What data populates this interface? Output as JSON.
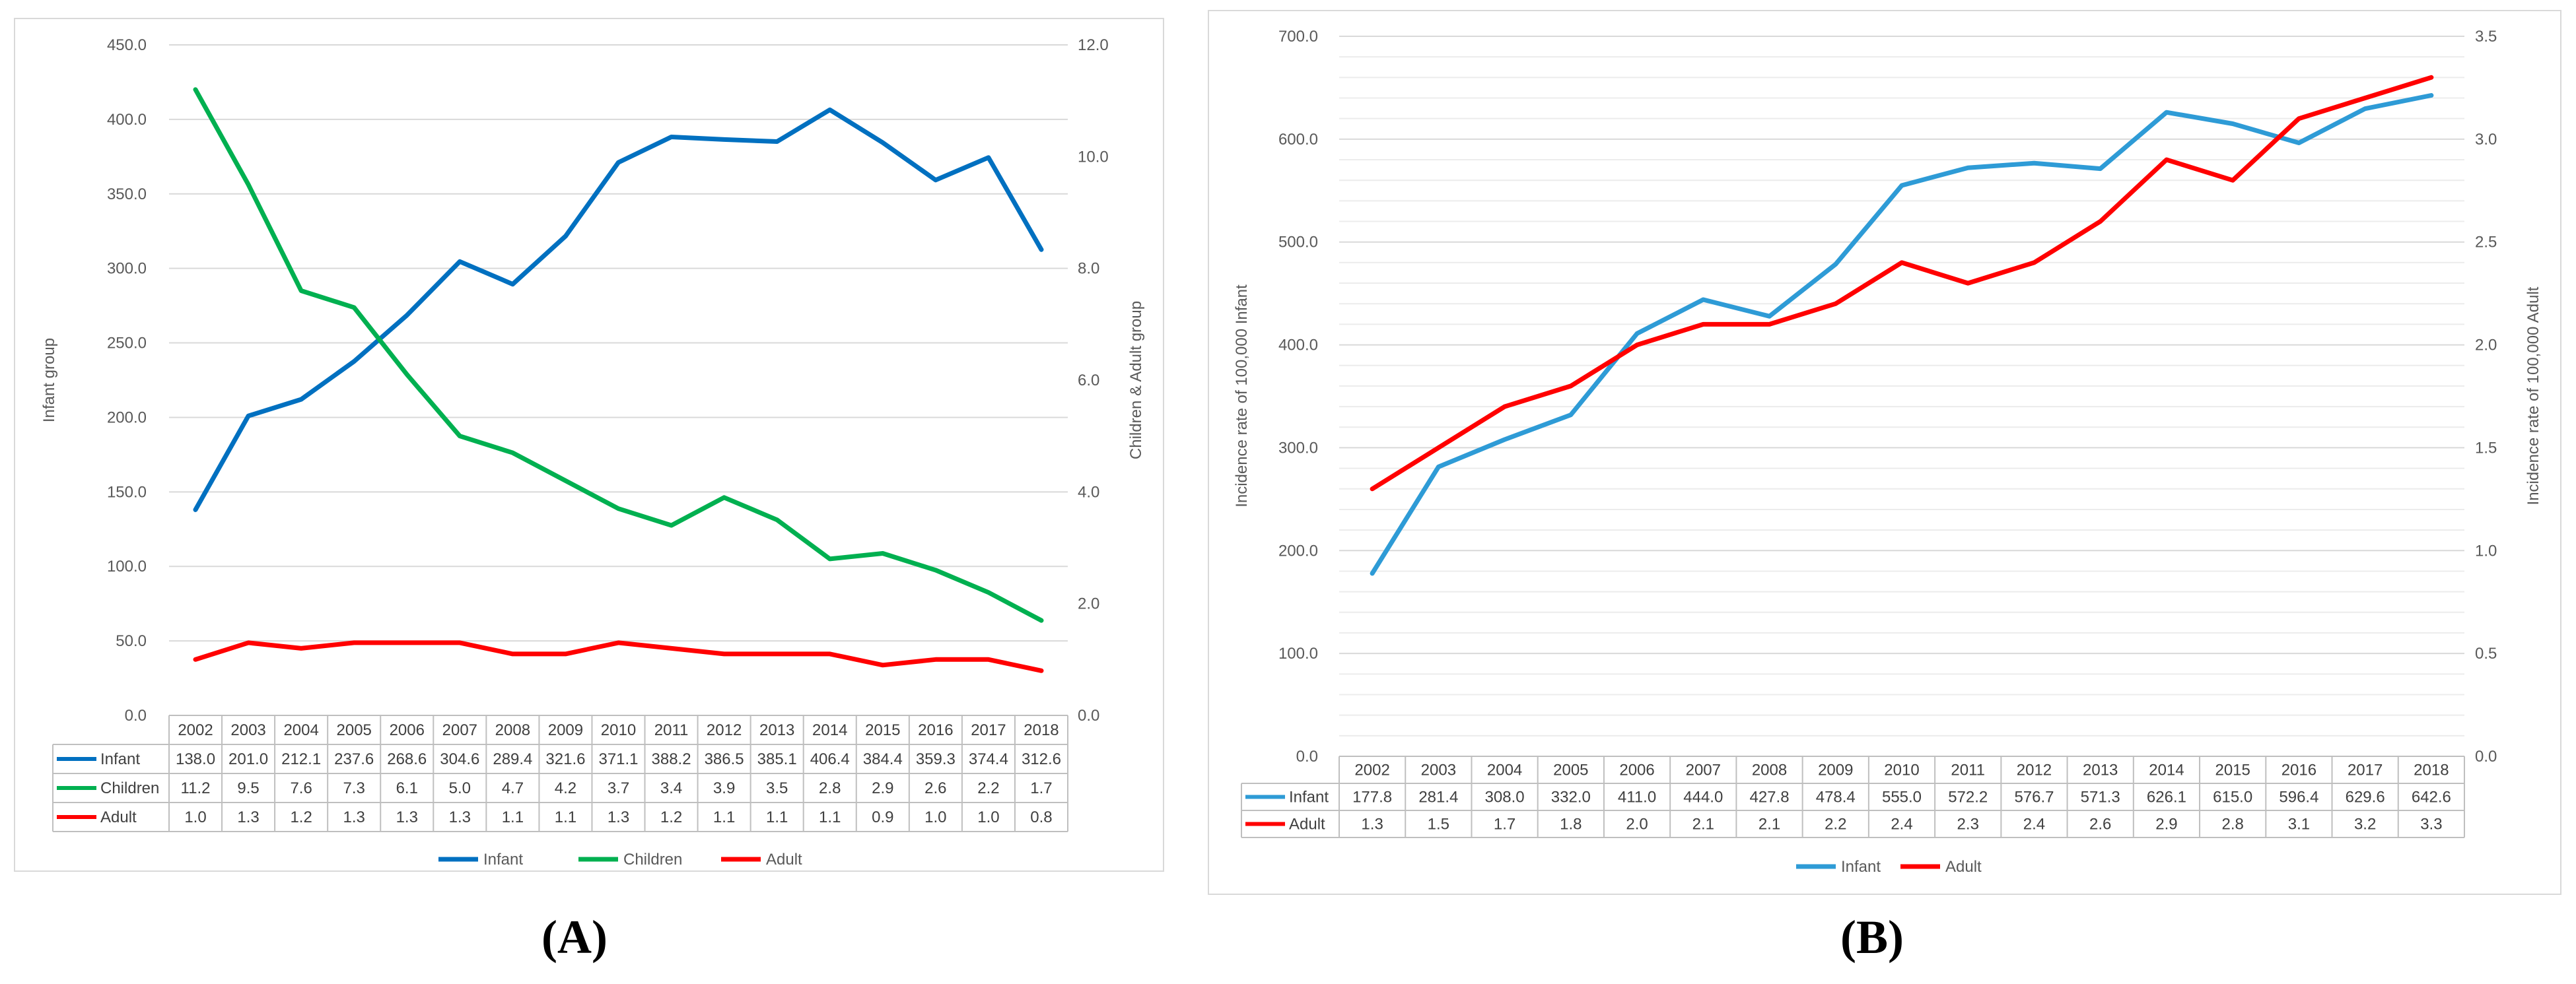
{
  "colors": {
    "infant_a": "#0070C0",
    "children": "#00B050",
    "adult": "#FF0000",
    "infant_b": "#2E9BD6"
  },
  "chart_data": [
    {
      "panel": "(A)",
      "type": "line",
      "categories": [
        "2002",
        "2003",
        "2004",
        "2005",
        "2006",
        "2007",
        "2008",
        "2009",
        "2010",
        "2011",
        "2012",
        "2013",
        "2014",
        "2015",
        "2016",
        "2017",
        "2018"
      ],
      "series": [
        {
          "name": "Infant",
          "axis": "left",
          "values": [
            138.0,
            201.0,
            212.1,
            237.6,
            268.6,
            304.6,
            289.4,
            321.6,
            371.1,
            388.2,
            386.5,
            385.1,
            406.4,
            384.4,
            359.3,
            374.4,
            312.6
          ]
        },
        {
          "name": "Children",
          "axis": "right",
          "values": [
            11.2,
            9.5,
            7.6,
            7.3,
            6.1,
            5.0,
            4.7,
            4.2,
            3.7,
            3.4,
            3.9,
            3.5,
            2.8,
            2.9,
            2.6,
            2.2,
            1.7
          ]
        },
        {
          "name": "Adult",
          "axis": "right",
          "values": [
            1.0,
            1.3,
            1.2,
            1.3,
            1.3,
            1.3,
            1.1,
            1.1,
            1.3,
            1.2,
            1.1,
            1.1,
            1.1,
            0.9,
            1.0,
            1.0,
            0.8
          ]
        }
      ],
      "ylabel_left": "Infant group",
      "ylabel_right": "Children & Adult group",
      "ylim_left": [
        0,
        450
      ],
      "ylim_right": [
        0,
        12
      ],
      "yticks_left": [
        "0.0",
        "50.0",
        "100.0",
        "150.0",
        "200.0",
        "250.0",
        "300.0",
        "350.0",
        "400.0",
        "450.0"
      ],
      "yticks_right": [
        "0.0",
        "2.0",
        "4.0",
        "6.0",
        "8.0",
        "10.0",
        "12.0"
      ],
      "data_table": true,
      "legend": "bottom",
      "grid": true
    },
    {
      "panel": "(B)",
      "type": "line",
      "categories": [
        "2002",
        "2003",
        "2004",
        "2005",
        "2006",
        "2007",
        "2008",
        "2009",
        "2010",
        "2011",
        "2012",
        "2013",
        "2014",
        "2015",
        "2016",
        "2017",
        "2018"
      ],
      "series": [
        {
          "name": "Infant",
          "axis": "left",
          "values": [
            177.8,
            281.4,
            308.0,
            332.0,
            411.0,
            444.0,
            427.8,
            478.4,
            555.0,
            572.2,
            576.7,
            571.3,
            626.1,
            615.0,
            596.4,
            629.6,
            642.6
          ]
        },
        {
          "name": "Adult",
          "axis": "right",
          "values": [
            1.3,
            1.5,
            1.7,
            1.8,
            2.0,
            2.1,
            2.1,
            2.2,
            2.4,
            2.3,
            2.4,
            2.6,
            2.9,
            2.8,
            3.1,
            3.2,
            3.3
          ]
        }
      ],
      "ylabel_left": "Incidence rate of 100,000 Infant",
      "ylabel_right": "Incidence rate of 100,000  Adult",
      "ylim_left": [
        0,
        700
      ],
      "ylim_right": [
        0,
        3.5
      ],
      "yticks_left": [
        "0.0",
        "100.0",
        "200.0",
        "300.0",
        "400.0",
        "500.0",
        "600.0",
        "700.0"
      ],
      "yticks_right": [
        "0.0",
        "0.5",
        "1.0",
        "1.5",
        "2.0",
        "2.5",
        "3.0",
        "3.5"
      ],
      "data_table": true,
      "legend": "bottom",
      "grid": true
    }
  ]
}
